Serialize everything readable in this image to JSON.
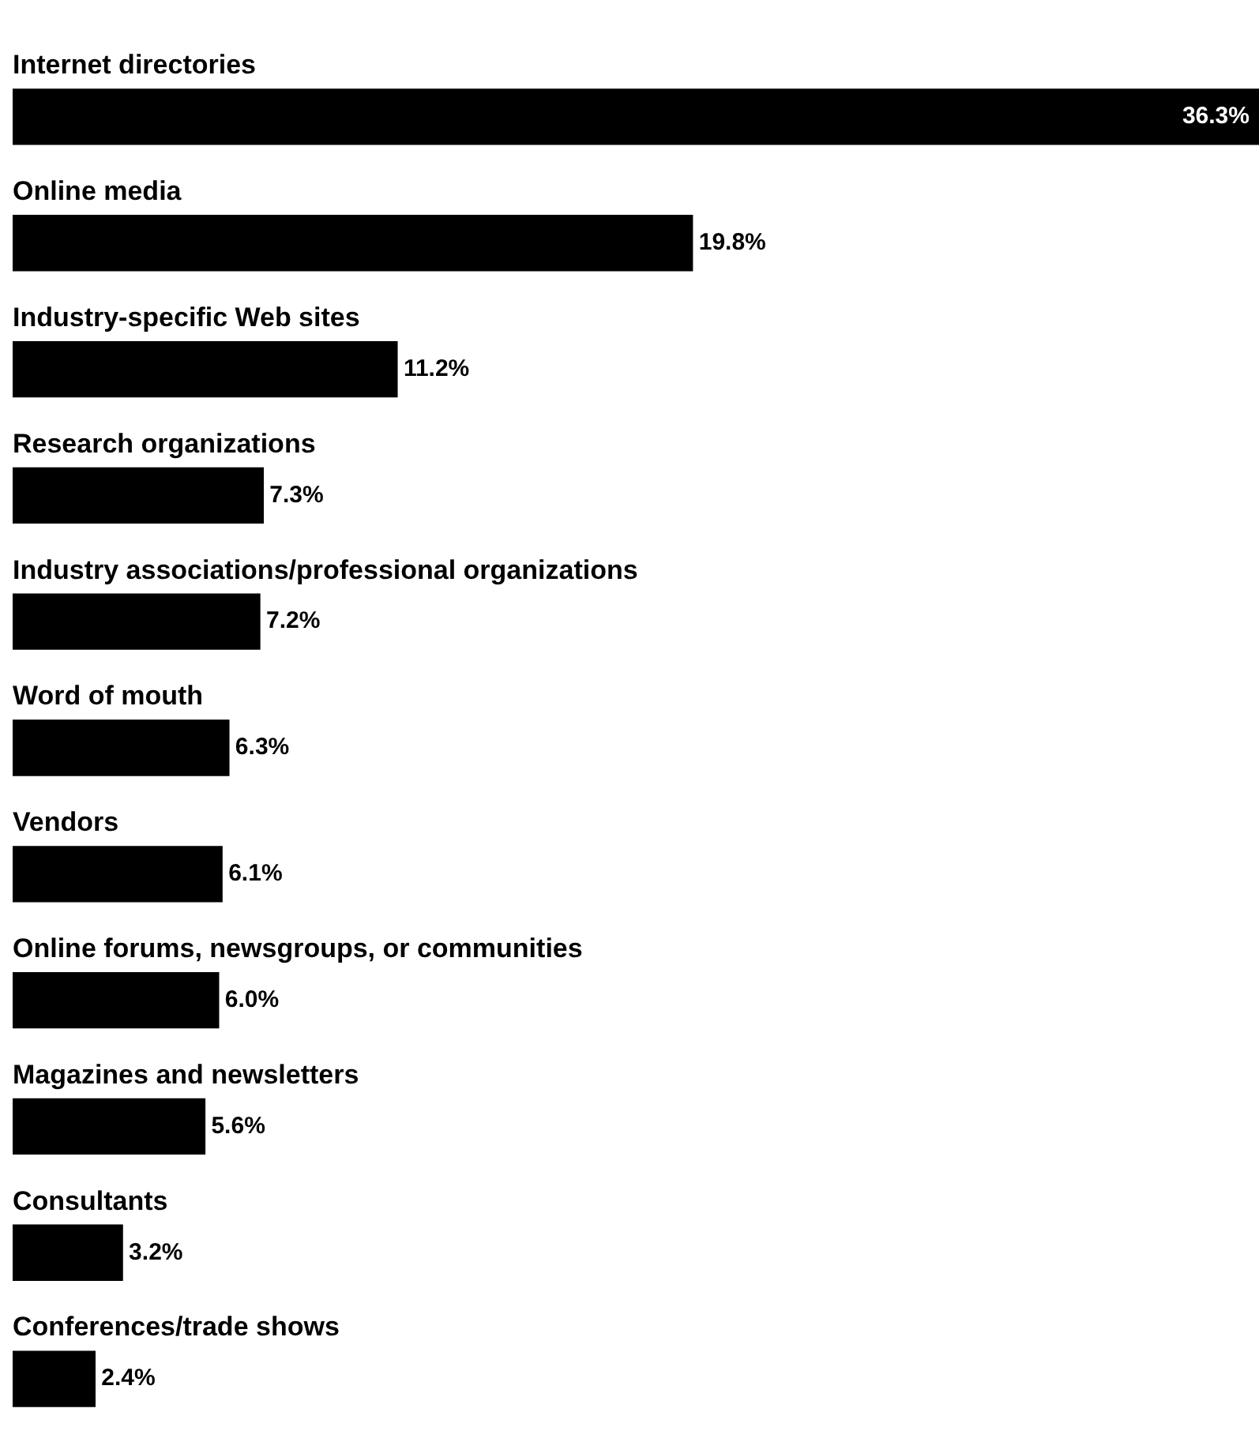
{
  "chart_data": {
    "type": "bar",
    "orientation": "horizontal",
    "categories": [
      "Internet directories",
      "Online media",
      "Industry-specific Web sites",
      "Research organizations",
      "Industry associations/professional organizations",
      "Word of mouth",
      "Vendors",
      "Online forums, newsgroups, or communities",
      "Magazines and newsletters",
      "Consultants",
      "Conferences/trade shows"
    ],
    "values": [
      36.3,
      19.8,
      11.2,
      7.3,
      7.2,
      6.3,
      6.1,
      6.0,
      5.6,
      3.2,
      2.4
    ],
    "value_labels": [
      "36.3%",
      "19.8%",
      "11.2%",
      "7.3%",
      "7.2%",
      "6.3%",
      "6.1%",
      "6.0%",
      "5.6%",
      "3.2%",
      "2.4%"
    ],
    "color": "#000000",
    "legend": false
  }
}
